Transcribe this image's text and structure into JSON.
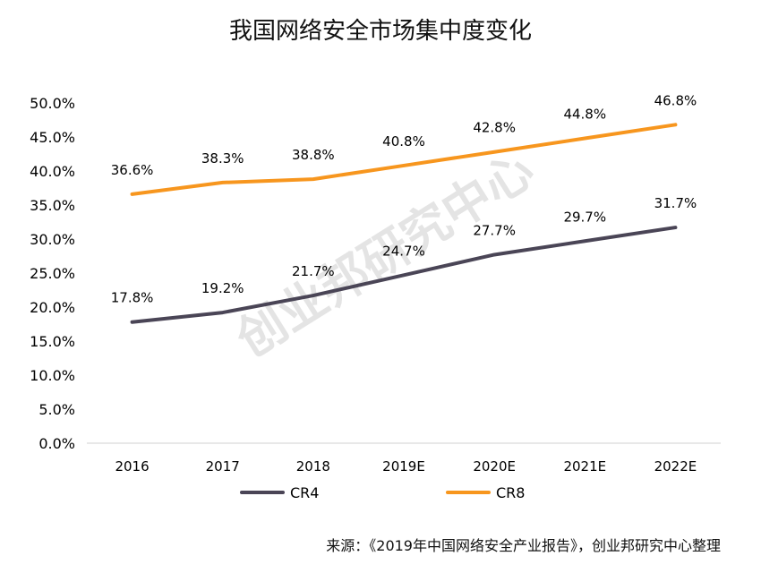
{
  "title": "我国网络安全市场集中度变化",
  "watermark": "创业邦研究中心",
  "source_note": "来源：《2019年中国网络安全产业报告》，创业邦研究中心整理",
  "chart_data": {
    "type": "line",
    "title": "我国网络安全市场集中度变化",
    "categories": [
      "2016",
      "2017",
      "2018",
      "2019E",
      "2020E",
      "2021E",
      "2022E"
    ],
    "ylim": [
      0,
      50
    ],
    "yticks": [
      "0.0%",
      "5.0%",
      "10.0%",
      "15.0%",
      "20.0%",
      "25.0%",
      "30.0%",
      "35.0%",
      "40.0%",
      "45.0%",
      "50.0%"
    ],
    "grid": false,
    "legend_position": "bottom",
    "series": [
      {
        "name": "CR4",
        "color": "#4a4556",
        "values": [
          17.8,
          19.2,
          21.7,
          24.7,
          27.7,
          29.7,
          31.7
        ],
        "labels": [
          "17.8%",
          "19.2%",
          "21.7%",
          "24.7%",
          "27.7%",
          "29.7%",
          "31.7%"
        ]
      },
      {
        "name": "CR8",
        "color": "#f7961e",
        "values": [
          36.6,
          38.3,
          38.8,
          40.8,
          42.8,
          44.8,
          46.8
        ],
        "labels": [
          "36.6%",
          "38.3%",
          "38.8%",
          "40.8%",
          "42.8%",
          "44.8%",
          "46.8%"
        ]
      }
    ]
  }
}
